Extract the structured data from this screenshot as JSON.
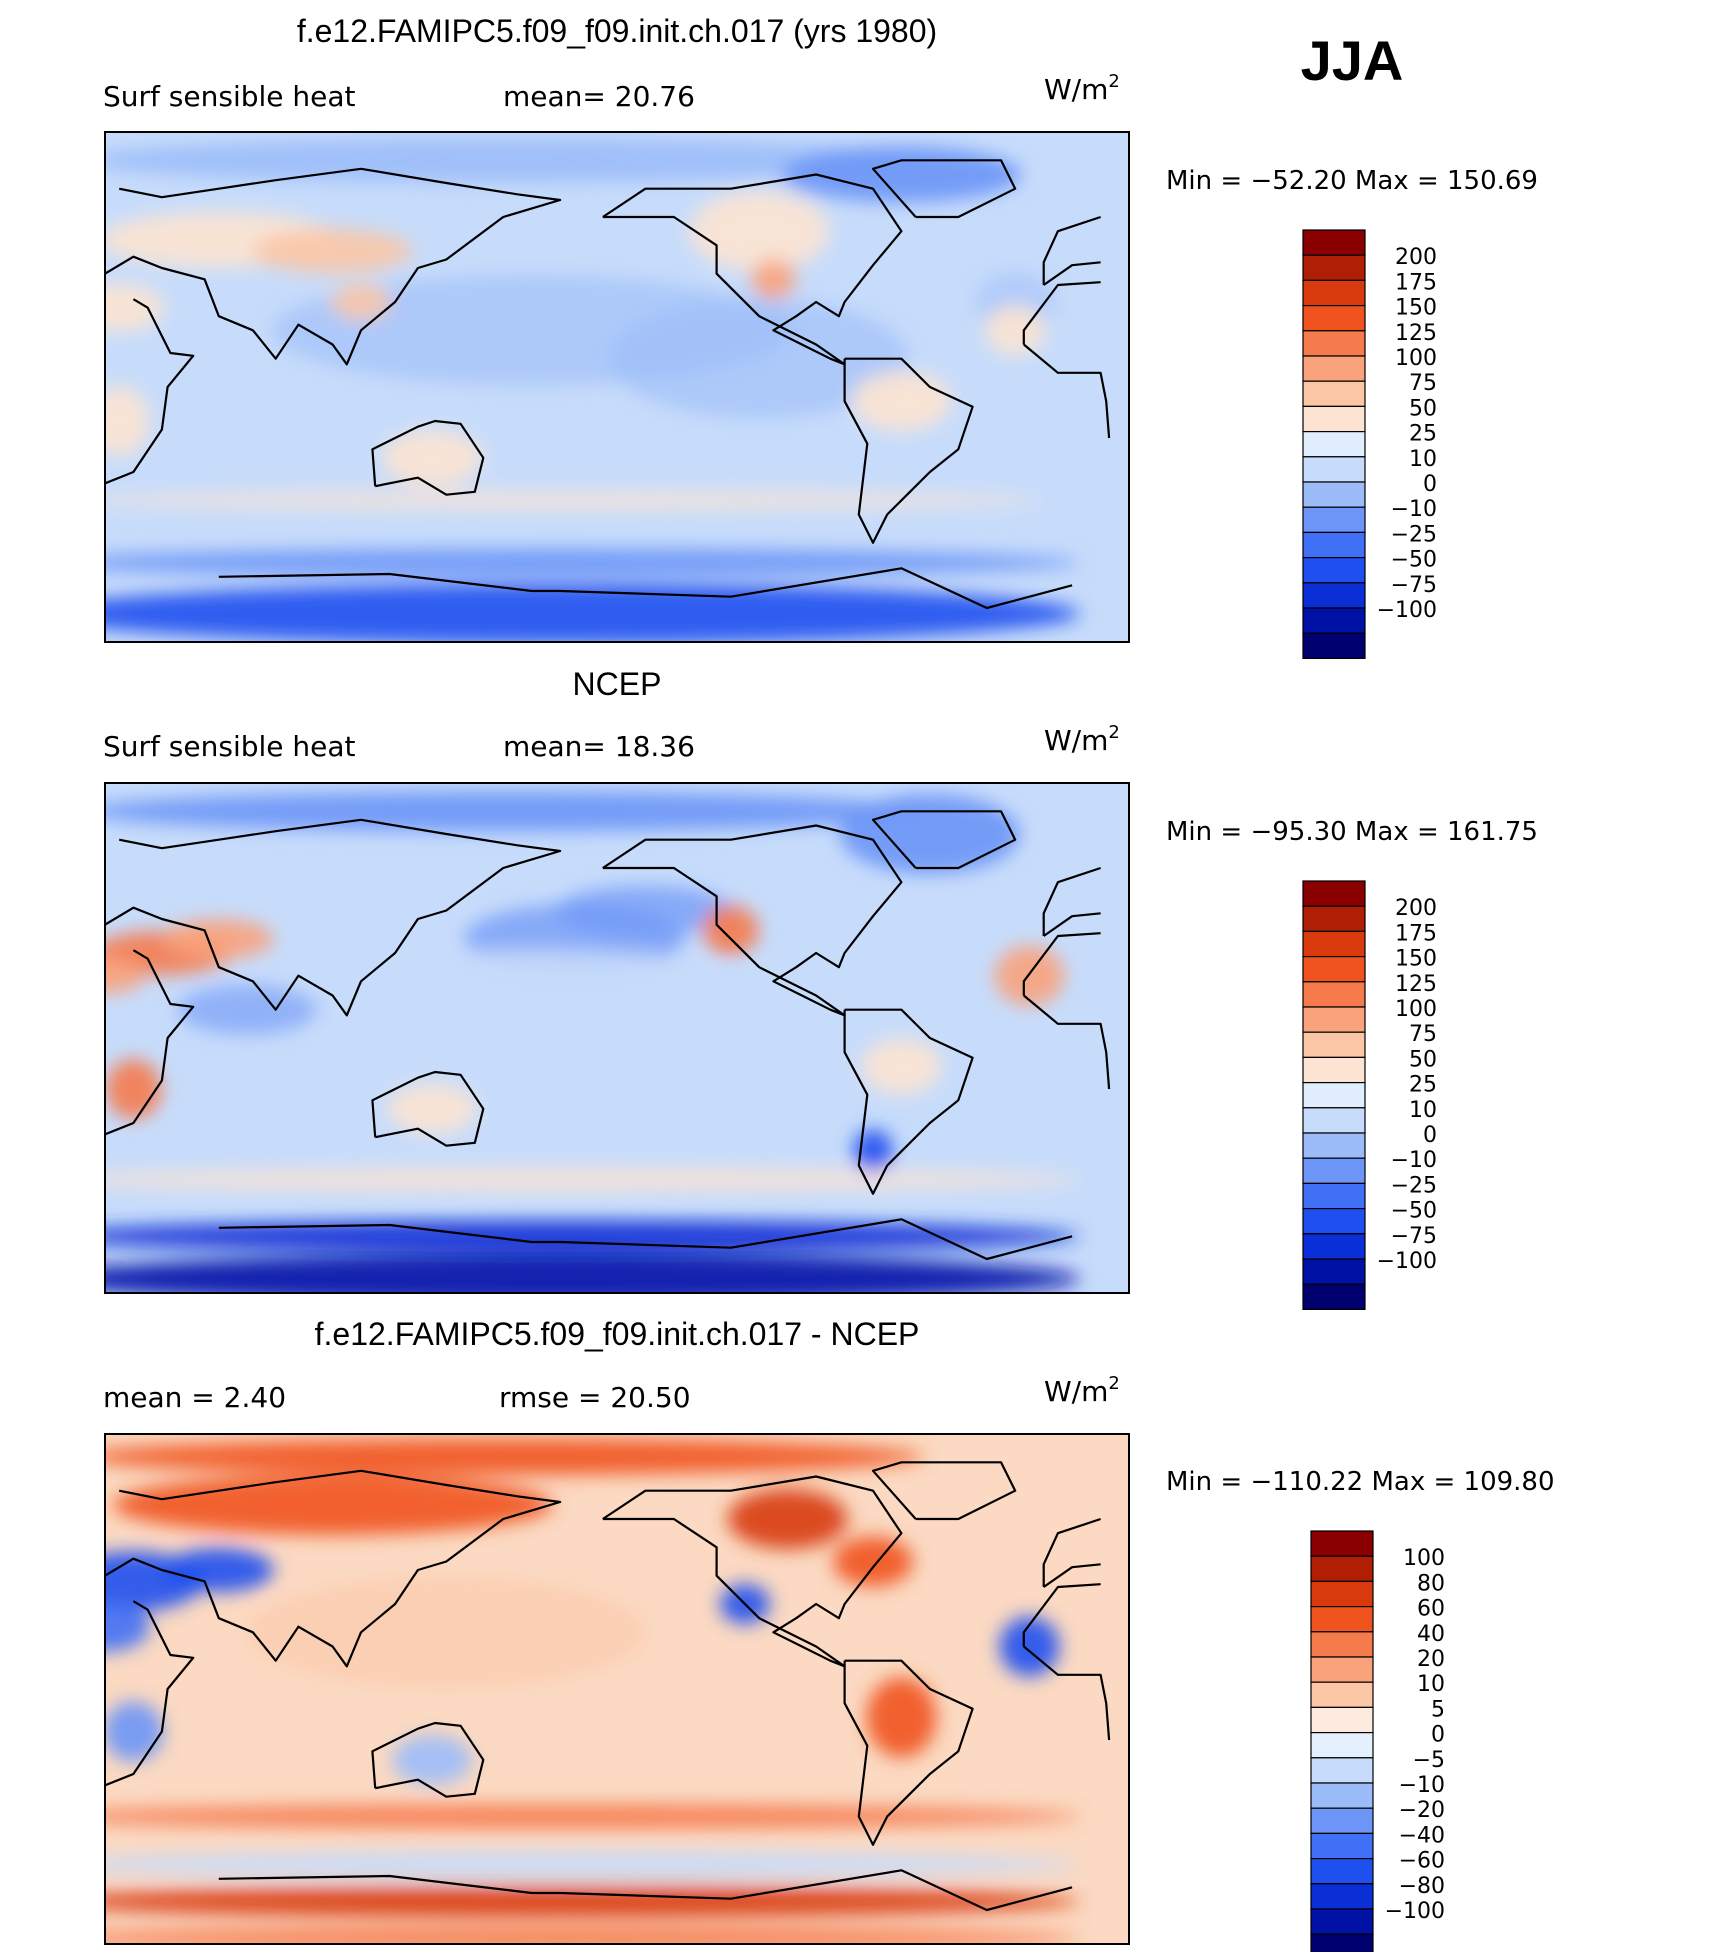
{
  "season": "JJA",
  "colors": {
    "abs_scale": [
      "#00006e",
      "#0011a6",
      "#0a2fd6",
      "#1e50f0",
      "#4070f5",
      "#6c95f7",
      "#9bbcf9",
      "#c7dcfb",
      "#e1eefd",
      "#fde4d2",
      "#fbc6a6",
      "#f9a27c",
      "#f57a4c",
      "#f1531f",
      "#d83a0d",
      "#b01f04",
      "#8a0000"
    ],
    "diff_scale": [
      "#00006e",
      "#0011a6",
      "#0a2fd6",
      "#1e50f0",
      "#4070f5",
      "#6c95f7",
      "#9bbcf9",
      "#c7dcfb",
      "#e5f0fd",
      "#fdebdf",
      "#fbc6a6",
      "#f9a27c",
      "#f57a4c",
      "#f1531f",
      "#d83a0d",
      "#b01f04",
      "#8a0000"
    ]
  },
  "chart_data": [
    {
      "type": "heatmap",
      "title": "f.e12.FAMIPC5.f09_f09.init.ch.017 (yrs 1980)",
      "left_label": "Surf  sensible  heat",
      "center_label": "mean=   20.76",
      "units_label": "W/m",
      "units_sup": "2",
      "minmax_label": "Min  =  −52.20  Max  =  150.69",
      "colorbar_ticks": [
        "200",
        "175",
        "150",
        "125",
        "100",
        "75",
        "50",
        "25",
        "10",
        "0",
        "−10",
        "−25",
        "−50",
        "−75",
        "−100"
      ],
      "mean": 20.76,
      "min": -52.2,
      "max": 150.69,
      "projection": "cylindrical equidistant, centered on 180°"
    },
    {
      "type": "heatmap",
      "title": "NCEP",
      "left_label": "Surf  sensible  heat",
      "center_label": "mean=   18.36",
      "units_label": "W/m",
      "units_sup": "2",
      "minmax_label": "Min  =  −95.30  Max  =  161.75",
      "colorbar_ticks": [
        "200",
        "175",
        "150",
        "125",
        "100",
        "75",
        "50",
        "25",
        "10",
        "0",
        "−10",
        "−25",
        "−50",
        "−75",
        "−100"
      ],
      "mean": 18.36,
      "min": -95.3,
      "max": 161.75,
      "projection": "cylindrical equidistant, centered on 180°"
    },
    {
      "type": "heatmap",
      "title": "f.e12.FAMIPC5.f09_f09.init.ch.017 - NCEP",
      "left_label": "mean  =     2.40",
      "center_label": "rmse  =    20.50",
      "units_label": "W/m",
      "units_sup": "2",
      "minmax_label": "Min  =  −110.22  Max  =  109.80",
      "colorbar_ticks": [
        "100",
        "80",
        "60",
        "40",
        "20",
        "10",
        "5",
        "0",
        "−5",
        "−10",
        "−20",
        "−40",
        "−60",
        "−80",
        "−100"
      ],
      "mean": 2.4,
      "rmse": 20.5,
      "min": -110.22,
      "max": 109.8,
      "projection": "cylindrical equidistant, centered on 180°"
    }
  ]
}
